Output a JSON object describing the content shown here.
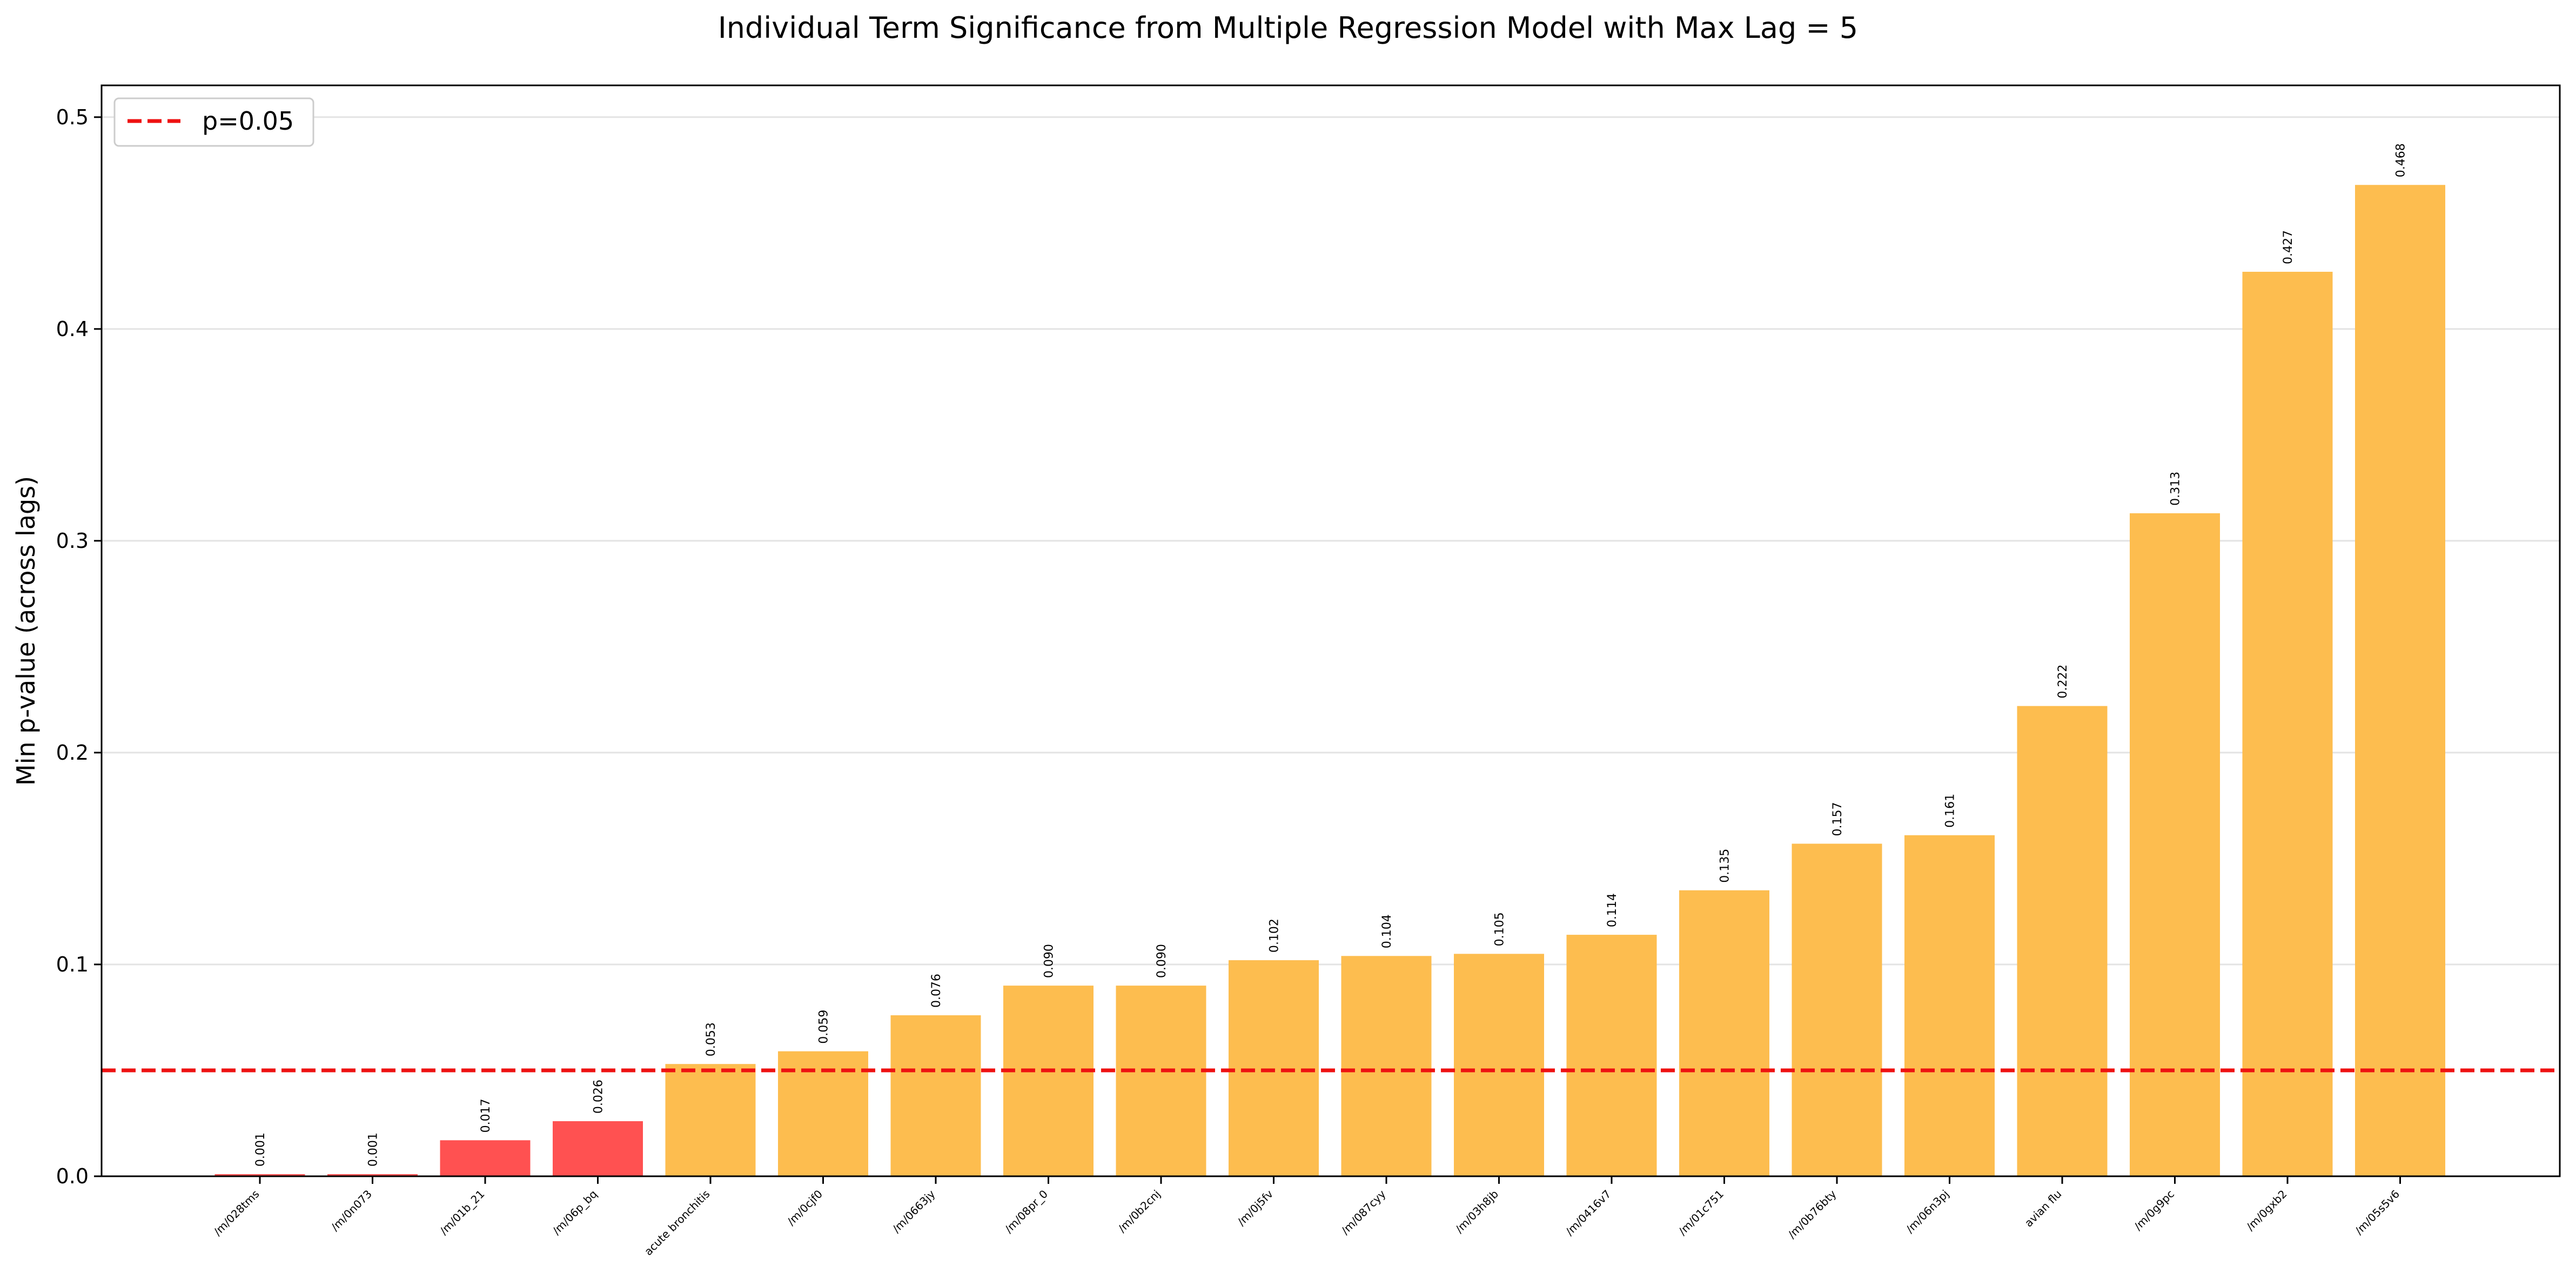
{
  "chart_data": {
    "type": "bar",
    "title": "Individual Term Significance from Multiple Regression Model with Max Lag = 5",
    "xlabel": "",
    "ylabel": "Min p-value (across lags)",
    "ylim": [
      0,
      0.515
    ],
    "yticks": [
      "0.0",
      "0.1",
      "0.2",
      "0.3",
      "0.4",
      "0.5"
    ],
    "grid": "y",
    "categories": [
      "/m/028tms",
      "/m/0n073",
      "/m/01b_21",
      "/m/06p_bq",
      "acute bronchitis",
      "/m/0cjf0",
      "/m/0663jy",
      "/m/08pr_0",
      "/m/0b2cnj",
      "/m/0j5fv",
      "/m/087cyy",
      "/m/03h8jb",
      "/m/0416v7",
      "/m/01c751",
      "/m/0b76bty",
      "/m/06n3pj",
      "avian flu",
      "/m/0g9pc",
      "/m/0gxb2",
      "/m/05s5v6"
    ],
    "values": [
      0.001,
      0.001,
      0.017,
      0.026,
      0.053,
      0.059,
      0.076,
      0.09,
      0.09,
      0.102,
      0.104,
      0.105,
      0.114,
      0.135,
      0.157,
      0.161,
      0.222,
      0.313,
      0.427,
      0.468
    ],
    "value_labels": [
      "0.001",
      "0.001",
      "0.017",
      "0.026",
      "0.053",
      "0.059",
      "0.076",
      "0.090",
      "0.090",
      "0.102",
      "0.104",
      "0.105",
      "0.114",
      "0.135",
      "0.157",
      "0.161",
      "0.222",
      "0.313",
      "0.427",
      "0.468"
    ],
    "threshold": {
      "value": 0.05,
      "label": "p=0.05",
      "color": "#ee1111",
      "style": "dashed"
    },
    "colors": {
      "significant": "#ff5151",
      "not_significant": "#fdbd4f"
    },
    "legend": {
      "placement": "top-left",
      "entries": [
        "p=0.05"
      ]
    }
  }
}
